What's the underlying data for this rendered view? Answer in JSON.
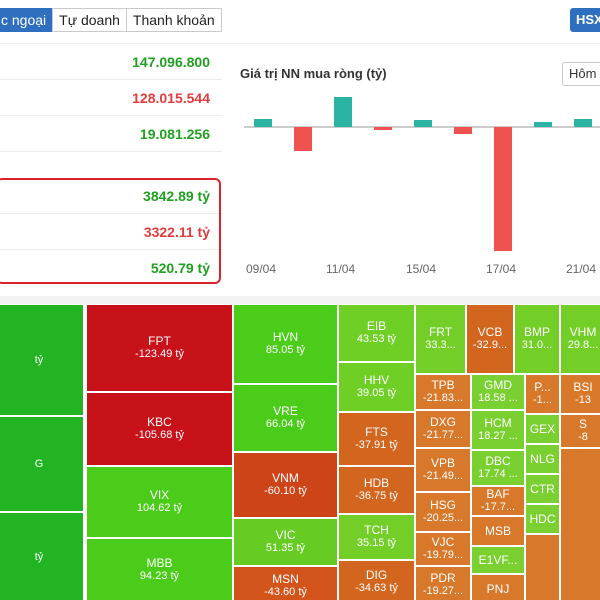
{
  "tabs": [
    "c ngoại",
    "Tự doanh",
    "Thanh khoản"
  ],
  "exchange_button": "HSX",
  "stats": {
    "rows": [
      "147.096.800",
      "128.015.544",
      "19.081.256",
      "3842.89 tỷ",
      "3322.11 tỷ",
      "520.79 tỷ"
    ]
  },
  "chart": {
    "title": "Giá trị NN mua ròng (tỷ)",
    "range_button": "Hôm",
    "x_labels": [
      "09/04",
      "11/04",
      "15/04",
      "17/04",
      "21/04"
    ],
    "positive_color": "#2bb3a3",
    "negative_color": "#ef5350"
  },
  "chart_data": {
    "type": "bar",
    "title": "Giá trị NN mua ròng (tỷ)",
    "values": [
      40,
      -120,
      150,
      -15,
      35,
      -35,
      -620,
      25,
      40
    ]
  },
  "treemap": {
    "cells": [
      {
        "ticker": "",
        "value": "tỷ",
        "color": "#22b422"
      },
      {
        "ticker": "",
        "value": "G",
        "color": "#22b422"
      },
      {
        "ticker": "",
        "value": "tỷ",
        "color": "#22b422"
      },
      {
        "ticker": "FPT",
        "value": "-123.49 tỷ",
        "color": "#c8121a"
      },
      {
        "ticker": "KBC",
        "value": "-105.68 tỷ",
        "color": "#c8121a"
      },
      {
        "ticker": "VIX",
        "value": "104.62 tỷ",
        "color": "#4ccc1a"
      },
      {
        "ticker": "MBB",
        "value": "94.23 tỷ",
        "color": "#4ccc1a"
      },
      {
        "ticker": "HVN",
        "value": "85.05 tỷ",
        "color": "#4ccc1a"
      },
      {
        "ticker": "VRE",
        "value": "66.04 tỷ",
        "color": "#4ccc1a"
      },
      {
        "ticker": "VNM",
        "value": "-60.10 tỷ",
        "color": "#cc4418"
      },
      {
        "ticker": "VIC",
        "value": "51.35 tỷ",
        "color": "#66cc24"
      },
      {
        "ticker": "MSN",
        "value": "-43.60 tỷ",
        "color": "#d2541a"
      },
      {
        "ticker": "EIB",
        "value": "43.53 tỷ",
        "color": "#6fcf24"
      },
      {
        "ticker": "HHV",
        "value": "39.05 tỷ",
        "color": "#6fcf24"
      },
      {
        "ticker": "FTS",
        "value": "-37.91 tỷ",
        "color": "#d2661f"
      },
      {
        "ticker": "HDB",
        "value": "-36.75 tỷ",
        "color": "#d2661f"
      },
      {
        "ticker": "TCH",
        "value": "35.15 tỷ",
        "color": "#73cf28"
      },
      {
        "ticker": "DIG",
        "value": "-34.63 tỷ",
        "color": "#d2661f"
      },
      {
        "ticker": "FRT",
        "value": "33.3...",
        "color": "#73cf28"
      },
      {
        "ticker": "VCB",
        "value": "-32.9...",
        "color": "#d2661f"
      },
      {
        "ticker": "BMP",
        "value": "31.0...",
        "color": "#73cf28"
      },
      {
        "ticker": "VHM",
        "value": "29.8...",
        "color": "#73cf28"
      },
      {
        "ticker": "TPB",
        "value": "-21.83...",
        "color": "#d8782a"
      },
      {
        "ticker": "DXG",
        "value": "-21.77...",
        "color": "#d8782a"
      },
      {
        "ticker": "VPB",
        "value": "-21.49...",
        "color": "#d8782a"
      },
      {
        "ticker": "HSG",
        "value": "-20.25...",
        "color": "#d8782a"
      },
      {
        "ticker": "VJC",
        "value": "-19.79...",
        "color": "#d8782a"
      },
      {
        "ticker": "PDR",
        "value": "-19.27...",
        "color": "#d8782a"
      },
      {
        "ticker": "GMD",
        "value": "18.58 ...",
        "color": "#7ad030"
      },
      {
        "ticker": "HCM",
        "value": "18.27 ...",
        "color": "#7ad030"
      },
      {
        "ticker": "DBC",
        "value": "17.74 ...",
        "color": "#7ad030"
      },
      {
        "ticker": "BAF",
        "value": "-17.7...",
        "color": "#d8782a"
      },
      {
        "ticker": "MSB",
        "value": "",
        "color": "#d8782a"
      },
      {
        "ticker": "E1VF...",
        "value": "",
        "color": "#7ad030"
      },
      {
        "ticker": "PNJ",
        "value": "",
        "color": "#d8782a"
      },
      {
        "ticker": "P...",
        "value": "-1...",
        "color": "#d8782a"
      },
      {
        "ticker": "BSI",
        "value": "-13",
        "color": "#d8782a"
      },
      {
        "ticker": "GEX",
        "value": "",
        "color": "#7ad030"
      },
      {
        "ticker": "S",
        "value": "-8",
        "color": "#d8782a"
      },
      {
        "ticker": "NLG",
        "value": "",
        "color": "#7ad030"
      },
      {
        "ticker": "CTR",
        "value": "",
        "color": "#7ad030"
      },
      {
        "ticker": "HDC",
        "value": "",
        "color": "#7ad030"
      }
    ]
  }
}
